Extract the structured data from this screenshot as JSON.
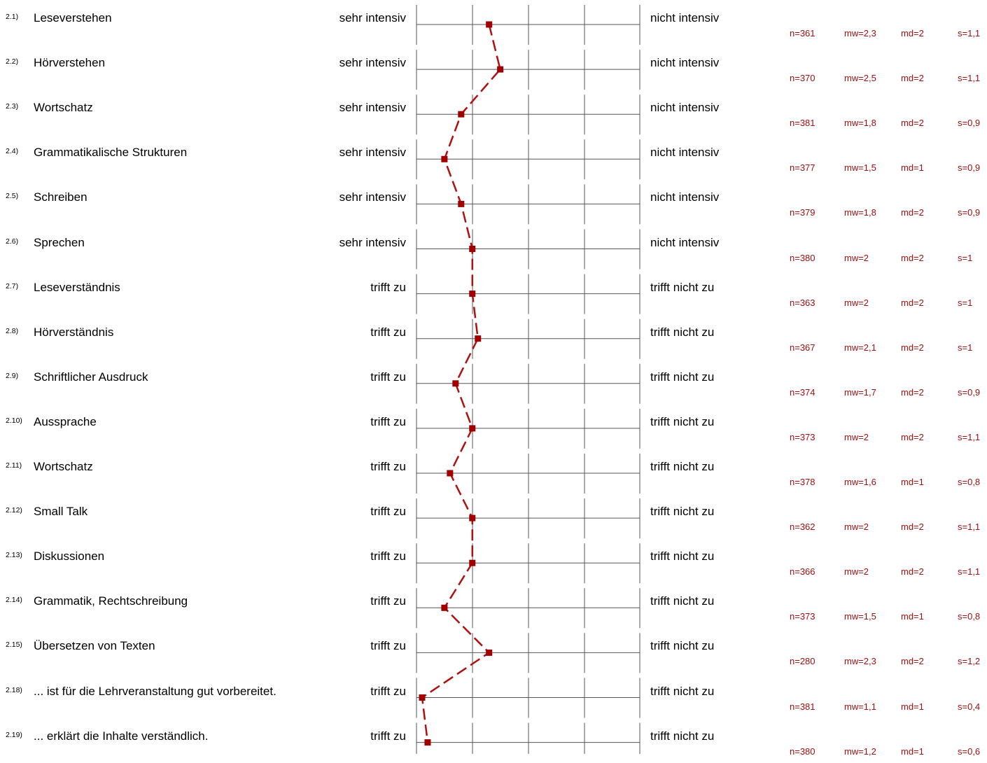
{
  "colors": {
    "line": "#b01010",
    "marker": "#a00000",
    "stats": "#a01010",
    "scale": "#555555"
  },
  "chart_data": {
    "type": "line",
    "scale_points": 5,
    "xlim": [
      1,
      5
    ],
    "series": [
      {
        "values": [
          2.3,
          2.5,
          1.8,
          1.5,
          1.8,
          2.0,
          2.0,
          2.1,
          1.7,
          2.0,
          1.6,
          2.0,
          2.0,
          1.5,
          2.3,
          1.1,
          1.2
        ]
      }
    ]
  },
  "rows": [
    {
      "num": "2.1)",
      "label": "Leseverstehen",
      "left": "sehr intensiv",
      "right": "nicht intensiv",
      "n": "n=361",
      "mw": "mw=2,3",
      "md": "md=2",
      "s": "s=1,1"
    },
    {
      "num": "2.2)",
      "label": "Hörverstehen",
      "left": "sehr intensiv",
      "right": "nicht intensiv",
      "n": "n=370",
      "mw": "mw=2,5",
      "md": "md=2",
      "s": "s=1,1"
    },
    {
      "num": "2.3)",
      "label": "Wortschatz",
      "left": "sehr intensiv",
      "right": "nicht intensiv",
      "n": "n=381",
      "mw": "mw=1,8",
      "md": "md=2",
      "s": "s=0,9"
    },
    {
      "num": "2.4)",
      "label": "Grammatikalische Strukturen",
      "left": "sehr intensiv",
      "right": "nicht intensiv",
      "n": "n=377",
      "mw": "mw=1,5",
      "md": "md=1",
      "s": "s=0,9"
    },
    {
      "num": "2.5)",
      "label": "Schreiben",
      "left": "sehr intensiv",
      "right": "nicht intensiv",
      "n": "n=379",
      "mw": "mw=1,8",
      "md": "md=2",
      "s": "s=0,9"
    },
    {
      "num": "2.6)",
      "label": "Sprechen",
      "left": "sehr intensiv",
      "right": "nicht intensiv",
      "n": "n=380",
      "mw": "mw=2",
      "md": "md=2",
      "s": "s=1"
    },
    {
      "num": "2.7)",
      "label": "Leseverständnis",
      "left": "trifft zu",
      "right": "trifft nicht zu",
      "n": "n=363",
      "mw": "mw=2",
      "md": "md=2",
      "s": "s=1"
    },
    {
      "num": "2.8)",
      "label": "Hörverständnis",
      "left": "trifft zu",
      "right": "trifft nicht zu",
      "n": "n=367",
      "mw": "mw=2,1",
      "md": "md=2",
      "s": "s=1"
    },
    {
      "num": "2.9)",
      "label": "Schriftlicher Ausdruck",
      "left": "trifft zu",
      "right": "trifft nicht zu",
      "n": "n=374",
      "mw": "mw=1,7",
      "md": "md=2",
      "s": "s=0,9"
    },
    {
      "num": "2.10)",
      "label": "Aussprache",
      "left": "trifft zu",
      "right": "trifft nicht zu",
      "n": "n=373",
      "mw": "mw=2",
      "md": "md=2",
      "s": "s=1,1"
    },
    {
      "num": "2.11)",
      "label": "Wortschatz",
      "left": "trifft zu",
      "right": "trifft nicht zu",
      "n": "n=378",
      "mw": "mw=1,6",
      "md": "md=1",
      "s": "s=0,8"
    },
    {
      "num": "2.12)",
      "label": "Small Talk",
      "left": "trifft zu",
      "right": "trifft nicht zu",
      "n": "n=362",
      "mw": "mw=2",
      "md": "md=2",
      "s": "s=1,1"
    },
    {
      "num": "2.13)",
      "label": "Diskussionen",
      "left": "trifft zu",
      "right": "trifft nicht zu",
      "n": "n=366",
      "mw": "mw=2",
      "md": "md=2",
      "s": "s=1,1"
    },
    {
      "num": "2.14)",
      "label": "Grammatik, Rechtschreibung",
      "left": "trifft zu",
      "right": "trifft nicht zu",
      "n": "n=373",
      "mw": "mw=1,5",
      "md": "md=1",
      "s": "s=0,8"
    },
    {
      "num": "2.15)",
      "label": "Übersetzen von Texten",
      "left": "trifft zu",
      "right": "trifft nicht zu",
      "n": "n=280",
      "mw": "mw=2,3",
      "md": "md=2",
      "s": "s=1,2"
    },
    {
      "num": "2.18)",
      "label": "... ist für die Lehrveranstaltung gut vorbereitet.",
      "left": "trifft zu",
      "right": "trifft nicht zu",
      "n": "n=381",
      "mw": "mw=1,1",
      "md": "md=1",
      "s": "s=0,4"
    },
    {
      "num": "2.19)",
      "label": "... erklärt die Inhalte verständlich.",
      "left": "trifft zu",
      "right": "trifft nicht zu",
      "n": "n=380",
      "mw": "mw=1,2",
      "md": "md=1",
      "s": "s=0,6"
    }
  ]
}
